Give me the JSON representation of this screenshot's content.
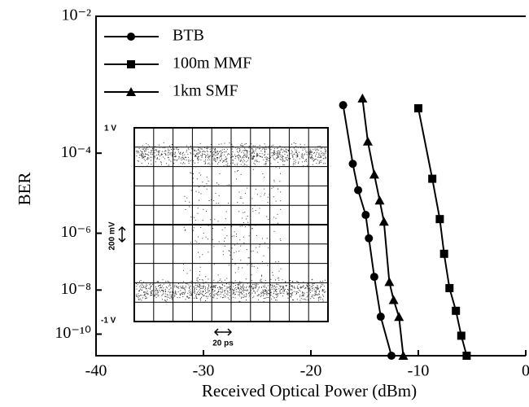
{
  "chart_data": {
    "type": "line",
    "x_label": "Received Optical Power (dBm)",
    "y_label": "BER",
    "xlim": [
      -40,
      0
    ],
    "xticks": [
      -40,
      -30,
      -20,
      -10,
      0
    ],
    "ylim": [
      0.01,
      7e-12
    ],
    "y_scale": "neg-log-log",
    "yticks": [
      {
        "value": 0.01,
        "label": "10⁻²"
      },
      {
        "value": 0.0001,
        "label": "10⁻⁴"
      },
      {
        "value": 1e-06,
        "label": "10⁻⁶"
      },
      {
        "value": 1e-08,
        "label": "10⁻⁸"
      },
      {
        "value": 1e-10,
        "label": "10⁻¹⁰"
      }
    ],
    "grid": false,
    "legend": "upper left",
    "series": [
      {
        "name": "BTB",
        "color": "#000000",
        "marker": "circle",
        "x": [
          -17.0,
          -16.1,
          -15.6,
          -14.9,
          -14.6,
          -14.1,
          -13.5,
          -12.5
        ],
        "values": [
          0.00073,
          6e-05,
          1.5e-05,
          3.4e-06,
          7e-07,
          3.3e-08,
          7e-10,
          7e-12
        ]
      },
      {
        "name": "100m MMF",
        "color": "#000000",
        "marker": "square",
        "x": [
          -10.0,
          -8.7,
          -8.0,
          -7.6,
          -7.1,
          -6.5,
          -6.0,
          -5.5
        ],
        "values": [
          0.00065,
          2.8e-05,
          2.6e-06,
          2.2e-07,
          1.2e-08,
          1.3e-09,
          8.3e-11,
          7e-12
        ]
      },
      {
        "name": "1km SMF",
        "color": "#000000",
        "marker": "triangle",
        "x": [
          -15.2,
          -14.7,
          -14.1,
          -13.6,
          -13.2,
          -12.7,
          -12.3,
          -11.8,
          -11.4
        ],
        "values": [
          0.00093,
          0.00017,
          3.5e-05,
          8.3e-06,
          2.2e-06,
          2.1e-08,
          3.9e-09,
          6.9e-10,
          7e-12
        ]
      }
    ],
    "inset": {
      "top_label": "1 V",
      "bottom_label": "-1 V",
      "v_scale_label": "200 mV",
      "t_scale_label": "20 ps"
    }
  }
}
